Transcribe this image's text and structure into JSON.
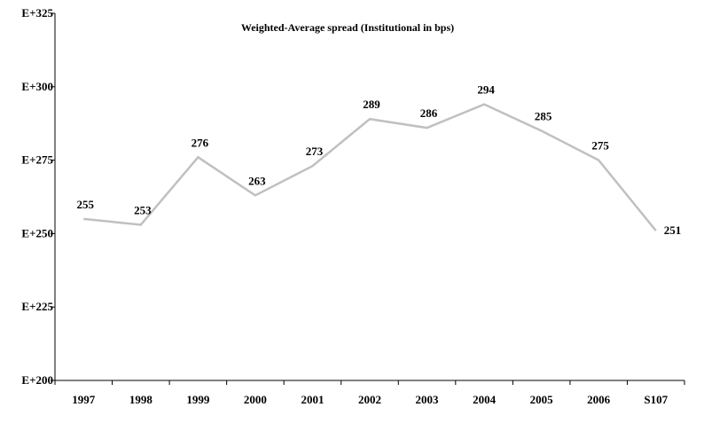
{
  "chart_data": {
    "type": "line",
    "title": "Weighted-Average spread (Institutional in bps)",
    "xlabel": "",
    "ylabel": "",
    "categories": [
      "1997",
      "1998",
      "1999",
      "2000",
      "2001",
      "2002",
      "2003",
      "2004",
      "2005",
      "2006",
      "S107"
    ],
    "series": [
      {
        "values": [
          255,
          253,
          276,
          263,
          273,
          289,
          286,
          294,
          285,
          275,
          251
        ],
        "color": "#c0c0c0"
      }
    ],
    "data_labels": [
      "255",
      "253",
      "276",
      "263",
      "273",
      "289",
      "286",
      "294",
      "285",
      "275",
      "251"
    ],
    "ylim": [
      200,
      325
    ],
    "y_ticks": [
      200,
      225,
      250,
      275,
      300,
      325
    ],
    "y_tick_labels": [
      "E+200",
      "E+225",
      "E+250",
      "E+275",
      "E+300",
      "E+325"
    ],
    "grid": false,
    "legend": "none"
  }
}
